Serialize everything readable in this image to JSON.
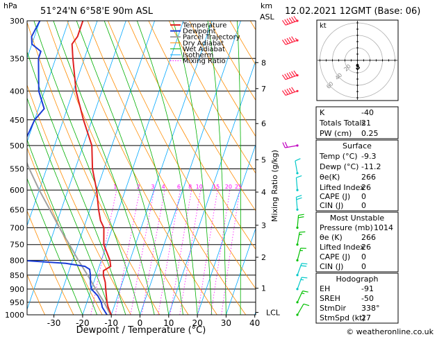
{
  "header": {
    "location": "51°24'N  6°58'E  90m  ASL",
    "datetime": "12.02.2021  12GMT  (Base: 06)"
  },
  "axes": {
    "p_unit": "hPa",
    "km_unit": "km",
    "asl": "ASL",
    "xlabel": "Dewpoint / Temperature (°C)",
    "mixing_label": "Mixing Ratio (g/kg)",
    "lcl": "LCL"
  },
  "legend": [
    "Temperature",
    "Dewpoint",
    "Parcel Trajectory",
    "Dry Adiabat",
    "Wet Adiabat",
    "Isotherm",
    "Mixing Ratio"
  ],
  "colors": {
    "temperature": "#e02020",
    "dewpoint": "#1a3cd6",
    "parcel": "#a0a0a0",
    "dry": "#ff8c00",
    "wet": "#00b000",
    "isotherm": "#00a8ff",
    "mixing": "#ff00ff",
    "wind_cyan": "#00c8c8",
    "wind_green": "#00c000",
    "wind_red": "#ff2040",
    "wind_mag": "#c000c0"
  },
  "hodograph": {
    "label": "kt",
    "rings": [
      "20",
      "40",
      "60"
    ]
  },
  "indices": {
    "k": [
      "K",
      "-40"
    ],
    "tt": [
      "Totals Totals",
      "21"
    ],
    "pw": [
      "PW (cm)",
      "0.25"
    ],
    "surface_title": "Surface",
    "s_temp": [
      "Temp (°C)",
      "-9.3"
    ],
    "s_dewp": [
      "Dewp (°C)",
      "-11.2"
    ],
    "s_thetae": [
      "θe(K)",
      "266"
    ],
    "s_li": [
      "Lifted Index",
      "26"
    ],
    "s_cape": [
      "CAPE (J)",
      "0"
    ],
    "s_cin": [
      "CIN (J)",
      "0"
    ],
    "mu_title": "Most Unstable",
    "mu_p": [
      "Pressure (mb)",
      "1014"
    ],
    "mu_thetae": [
      "θe (K)",
      "266"
    ],
    "mu_li": [
      "Lifted Index",
      "26"
    ],
    "mu_cape": [
      "CAPE (J)",
      "0"
    ],
    "mu_cin": [
      "CIN (J)",
      "0"
    ],
    "hodo_title": "Hodograph",
    "eh": [
      "EH",
      "-91"
    ],
    "sreh": [
      "SREH",
      "-50"
    ],
    "stmdir": [
      "StmDir",
      "338°"
    ],
    "stmspd": [
      "StmSpd (kt)",
      "27"
    ]
  },
  "copyright": "© weatheronline.co.uk",
  "chart_data": {
    "type": "skew-t",
    "pressure_levels": [
      300,
      350,
      400,
      450,
      500,
      550,
      600,
      650,
      700,
      750,
      800,
      850,
      900,
      950,
      1000
    ],
    "x_ticks": [
      -30,
      -20,
      -10,
      0,
      10,
      20,
      30,
      40
    ],
    "height_km": [
      {
        "km": "8",
        "p": 356
      },
      {
        "km": "7",
        "p": 396
      },
      {
        "km": "6",
        "p": 457
      },
      {
        "km": "5",
        "p": 530
      },
      {
        "km": "4",
        "p": 605
      },
      {
        "km": "3",
        "p": 693
      },
      {
        "km": "2",
        "p": 790
      },
      {
        "km": "1",
        "p": 897
      }
    ],
    "mixing_ratios": [
      "1",
      "2",
      "3",
      "4",
      "6",
      "8",
      "10",
      "15",
      "20",
      "25"
    ],
    "mixing_label_p": 600,
    "temperature": [
      [
        1014,
        -9.3
      ],
      [
        1000,
        -10
      ],
      [
        970,
        -12
      ],
      [
        950,
        -13
      ],
      [
        925,
        -14
      ],
      [
        900,
        -15
      ],
      [
        875,
        -16
      ],
      [
        850,
        -17.5
      ],
      [
        835,
        -18
      ],
      [
        820,
        -16
      ],
      [
        800,
        -17
      ],
      [
        750,
        -21
      ],
      [
        700,
        -23
      ],
      [
        680,
        -25
      ],
      [
        650,
        -27
      ],
      [
        600,
        -30
      ],
      [
        550,
        -34
      ],
      [
        500,
        -37
      ],
      [
        450,
        -43
      ],
      [
        400,
        -49
      ],
      [
        350,
        -54
      ],
      [
        330,
        -56
      ],
      [
        320,
        -55
      ],
      [
        300,
        -55
      ]
    ],
    "dewpoint": [
      [
        1014,
        -11.2
      ],
      [
        1000,
        -11.5
      ],
      [
        970,
        -14
      ],
      [
        950,
        -15
      ],
      [
        925,
        -17
      ],
      [
        900,
        -20
      ],
      [
        880,
        -21
      ],
      [
        850,
        -22
      ],
      [
        830,
        -23
      ],
      [
        820,
        -25
      ],
      [
        810,
        -32
      ],
      [
        800,
        -48
      ],
      [
        750,
        -51
      ],
      [
        700,
        -54
      ],
      [
        650,
        -57
      ],
      [
        600,
        -60
      ],
      [
        550,
        -60
      ],
      [
        500,
        -61
      ],
      [
        450,
        -60
      ],
      [
        430,
        -58
      ],
      [
        400,
        -62
      ],
      [
        350,
        -66
      ],
      [
        340,
        -66
      ],
      [
        330,
        -70
      ],
      [
        320,
        -71
      ],
      [
        300,
        -70
      ]
    ],
    "parcel": [
      [
        1014,
        -9.3
      ],
      [
        950,
        -14
      ],
      [
        900,
        -18.5
      ],
      [
        850,
        -23
      ],
      [
        800,
        -28
      ],
      [
        750,
        -33
      ],
      [
        700,
        -38.5
      ],
      [
        650,
        -44
      ],
      [
        600,
        -50
      ],
      [
        550,
        -56
      ],
      [
        500,
        -62
      ]
    ],
    "lcl_p": 990,
    "wind_barbs": [
      {
        "p": 300,
        "color": "wind_red",
        "dir": 250,
        "speed": 60
      },
      {
        "p": 325,
        "color": "wind_red",
        "dir": 250,
        "speed": 55
      },
      {
        "p": 375,
        "color": "wind_red",
        "dir": 250,
        "speed": 60
      },
      {
        "p": 400,
        "color": "wind_red",
        "dir": 250,
        "speed": 50
      },
      {
        "p": 500,
        "color": "wind_mag",
        "dir": 260,
        "speed": 20
      },
      {
        "p": 560,
        "color": "wind_cyan",
        "dir": 350,
        "speed": 10
      },
      {
        "p": 600,
        "color": "wind_cyan",
        "dir": 355,
        "speed": 10
      },
      {
        "p": 650,
        "color": "wind_cyan",
        "dir": 355,
        "speed": 20
      },
      {
        "p": 700,
        "color": "wind_green",
        "dir": 5,
        "speed": 20
      },
      {
        "p": 750,
        "color": "wind_green",
        "dir": 10,
        "speed": 15
      },
      {
        "p": 800,
        "color": "wind_green",
        "dir": 15,
        "speed": 15
      },
      {
        "p": 850,
        "color": "wind_cyan",
        "dir": 20,
        "speed": 20
      },
      {
        "p": 900,
        "color": "wind_cyan",
        "dir": 20,
        "speed": 15
      },
      {
        "p": 950,
        "color": "wind_green",
        "dir": 25,
        "speed": 15
      },
      {
        "p": 1000,
        "color": "wind_green",
        "dir": 30,
        "speed": 10
      }
    ],
    "hodo_points_kt": [
      [
        0,
        -8
      ],
      [
        3,
        -12
      ],
      [
        0,
        -15
      ],
      [
        -2,
        -12
      ]
    ]
  }
}
